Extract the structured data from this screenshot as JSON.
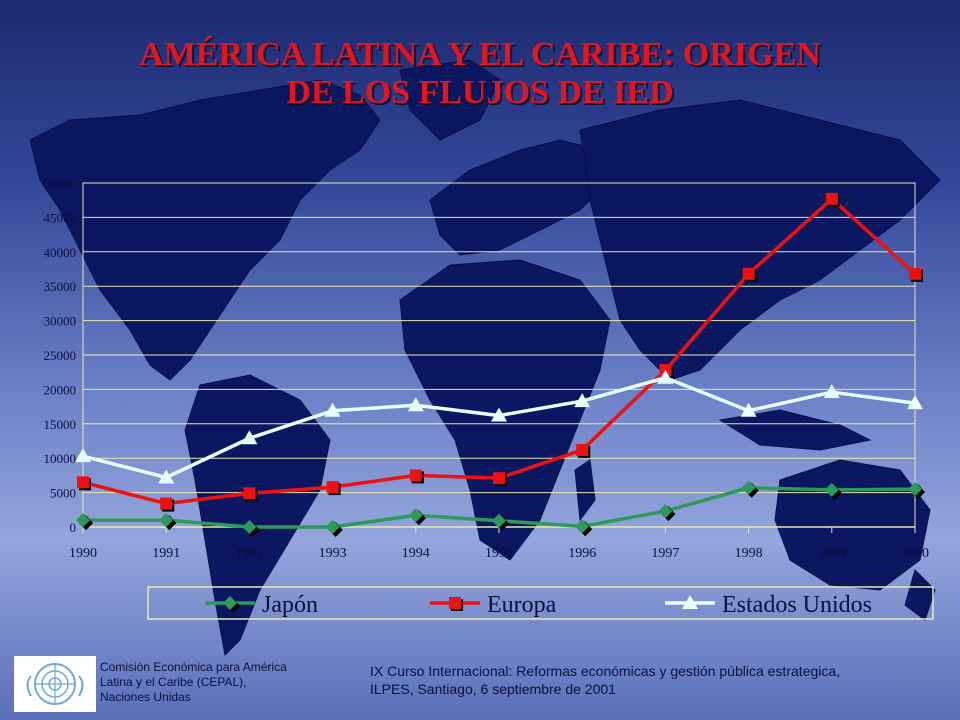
{
  "title_line1": "AMÉRICA LATINA Y EL CARIBE: ORIGEN",
  "title_line2": "DE LOS FLUJOS DE IED",
  "chart_data": {
    "type": "line",
    "categories": [
      "1990",
      "1991",
      "1992",
      "1993",
      "1994",
      "1995",
      "1996",
      "1997",
      "1998",
      "1999",
      "2000"
    ],
    "ylim": [
      0,
      50000
    ],
    "yticks": [
      0,
      5000,
      10000,
      15000,
      20000,
      25000,
      30000,
      35000,
      40000,
      45000,
      50000
    ],
    "grid": true,
    "legend_position": "bottom",
    "series": [
      {
        "name": "Japón",
        "color": "#2e9a5a",
        "marker": "diamond",
        "values": [
          1000,
          1000,
          0,
          0,
          1700,
          900,
          100,
          2300,
          5700,
          5400,
          5500
        ]
      },
      {
        "name": "Europa",
        "color": "#ee1111",
        "marker": "square",
        "values": [
          6500,
          3400,
          4900,
          5800,
          7500,
          7100,
          11200,
          22800,
          36800,
          47700,
          36800
        ]
      },
      {
        "name": "Estados Unidos",
        "color": "#e8ffff",
        "marker": "triangle",
        "values": [
          10300,
          7200,
          12900,
          16900,
          17700,
          16200,
          18300,
          21700,
          16900,
          19600,
          18000
        ]
      }
    ]
  },
  "footer": {
    "org_line1": "Comisión Económica para América",
    "org_line2": "Latina y el Caribe (CEPAL),",
    "org_line3": "Naciones Unidas",
    "course_line1": "IX Curso Internacional: Reformas económicas y gestión pública estrategica,",
    "course_line2": "ILPES, Santiago, 6 septiembre de 2001"
  },
  "logo_icon": "un-emblem-icon"
}
